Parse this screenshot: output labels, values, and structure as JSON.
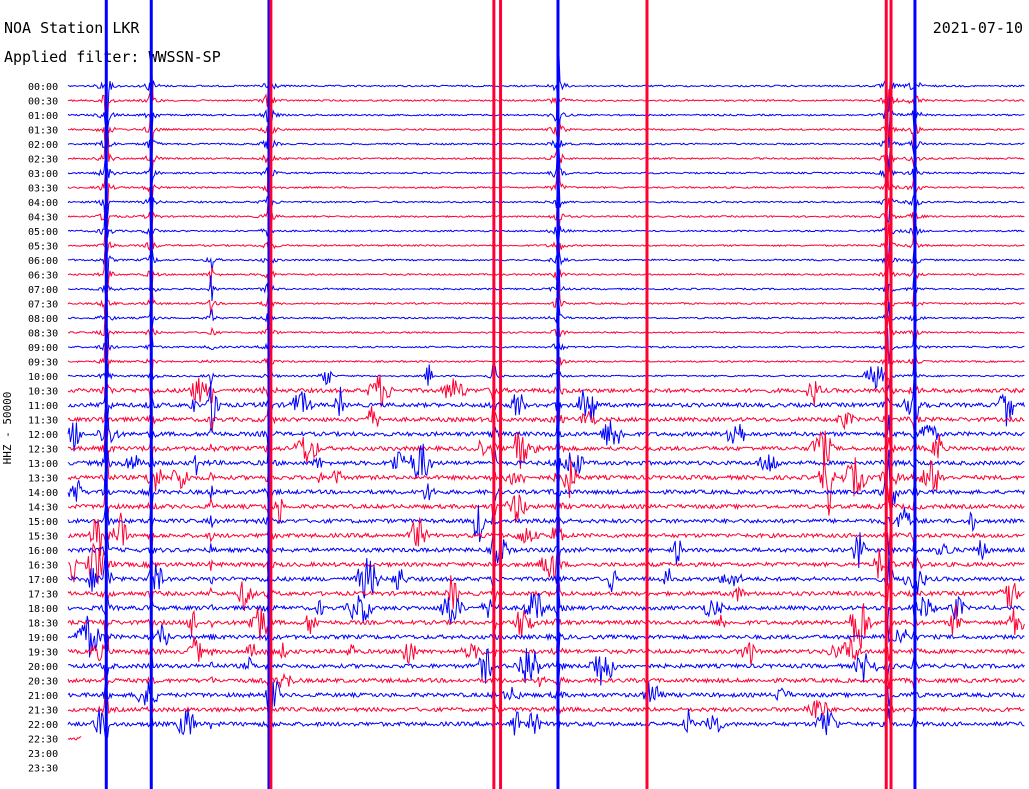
{
  "header": {
    "station": "NOA Station LKR",
    "filter": "Applied filter: WWSSN-SP",
    "date": "2021-07-10"
  },
  "chart_data": {
    "type": "line",
    "title": "NOA Station LKR",
    "subtitle": "Applied filter: WWSSN-SP",
    "date": "2021-07-10",
    "ylabel": "HHZ - 50000",
    "xlabel": "",
    "categories": [
      "00:00",
      "00:30",
      "01:00",
      "01:30",
      "02:00",
      "02:30",
      "03:00",
      "03:30",
      "04:00",
      "04:30",
      "05:00",
      "05:30",
      "06:00",
      "06:30",
      "07:00",
      "07:30",
      "08:00",
      "08:30",
      "09:00",
      "09:30",
      "10:00",
      "10:30",
      "11:00",
      "11:30",
      "12:00",
      "12:30",
      "13:00",
      "13:30",
      "14:00",
      "14:30",
      "15:00",
      "15:30",
      "16:00",
      "16:30",
      "17:00",
      "17:30",
      "18:00",
      "18:30",
      "19:00",
      "19:30",
      "20:00",
      "20:30",
      "21:00",
      "21:30",
      "22:00",
      "22:30",
      "23:00",
      "23:30"
    ],
    "trace_colors": [
      "#0000ff",
      "#ff0033"
    ],
    "last_recorded_trace": "22:30",
    "grid": false
  }
}
